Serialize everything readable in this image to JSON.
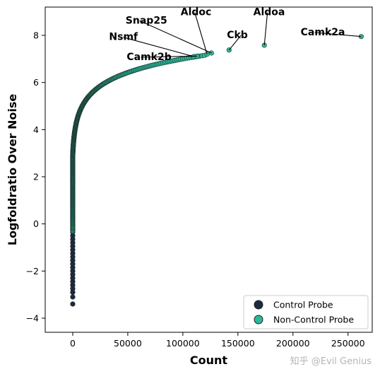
{
  "chart_data": {
    "type": "scatter",
    "xlabel": "Count",
    "ylabel": "Logfoldratio Over Noise",
    "xlim": [
      -25000,
      272000
    ],
    "ylim": [
      -4.6,
      9.2
    ],
    "x_ticks": [
      0,
      50000,
      100000,
      150000,
      200000,
      250000
    ],
    "x_tick_labels": [
      "0",
      "50000",
      "100000",
      "150000",
      "200000",
      "250000"
    ],
    "y_ticks": [
      -4,
      -2,
      0,
      2,
      4,
      6,
      8
    ],
    "y_tick_labels": [
      "−4",
      "−2",
      "0",
      "2",
      "4",
      "6",
      "8"
    ],
    "grid": false,
    "legend_position": "bottom-right",
    "series": [
      {
        "name": "Control Probe",
        "color": "#1b2a40",
        "points": [
          [
            0,
            -3.4
          ],
          [
            0,
            -3.1
          ],
          [
            0,
            -2.9
          ],
          [
            0,
            -2.75
          ],
          [
            0,
            -2.6
          ],
          [
            0,
            -2.45
          ],
          [
            0,
            -2.3
          ],
          [
            0,
            -2.15
          ],
          [
            0,
            -2.0
          ],
          [
            0,
            -1.85
          ],
          [
            0,
            -1.7
          ],
          [
            0,
            -1.55
          ],
          [
            0,
            -1.4
          ],
          [
            0,
            -1.25
          ],
          [
            0,
            -1.1
          ],
          [
            0,
            -0.95
          ],
          [
            0,
            -0.8
          ],
          [
            0,
            -0.65
          ],
          [
            0,
            -0.5
          ],
          [
            0,
            -0.35
          ],
          [
            0,
            -0.2
          ]
        ]
      },
      {
        "name": "Non-Control Probe",
        "color": "#2bb99a",
        "curve": {
          "y_start": -0.3,
          "y_end": 7.15,
          "count": 420,
          "x_at_6": 30000,
          "x_at_7": 100000
        },
        "points": [
          [
            110000,
            7.1
          ],
          [
            113000,
            7.12
          ],
          [
            122000,
            7.2
          ],
          [
            126000,
            7.25
          ],
          [
            142000,
            7.38
          ],
          [
            174000,
            7.58
          ],
          [
            262000,
            7.95
          ]
        ]
      }
    ],
    "annotations": [
      {
        "label": "Snap25",
        "point": [
          126000,
          7.25
        ],
        "text_at": [
          48000,
          8.5
        ]
      },
      {
        "label": "Aldoc",
        "point": [
          122000,
          7.2
        ],
        "text_at": [
          98000,
          8.85
        ]
      },
      {
        "label": "Aldoa",
        "point": [
          174000,
          7.58
        ],
        "text_at": [
          164000,
          8.85
        ]
      },
      {
        "label": "Nsmf",
        "point": [
          110000,
          7.1
        ],
        "text_at": [
          33000,
          7.8
        ]
      },
      {
        "label": "Ckb",
        "point": [
          142000,
          7.38
        ],
        "text_at": [
          140000,
          7.88
        ]
      },
      {
        "label": "Camk2a",
        "point": [
          262000,
          7.95
        ],
        "text_at": [
          207000,
          8.0
        ]
      },
      {
        "label": "Camk2b",
        "point": [
          113000,
          7.12
        ],
        "text_at": [
          49000,
          6.95
        ]
      }
    ],
    "legend": [
      {
        "label": "Control Probe",
        "color": "#1b2a40"
      },
      {
        "label": "Non-Control Probe",
        "color": "#2bb99a"
      }
    ]
  },
  "watermark": "知乎 @Evil Genius"
}
